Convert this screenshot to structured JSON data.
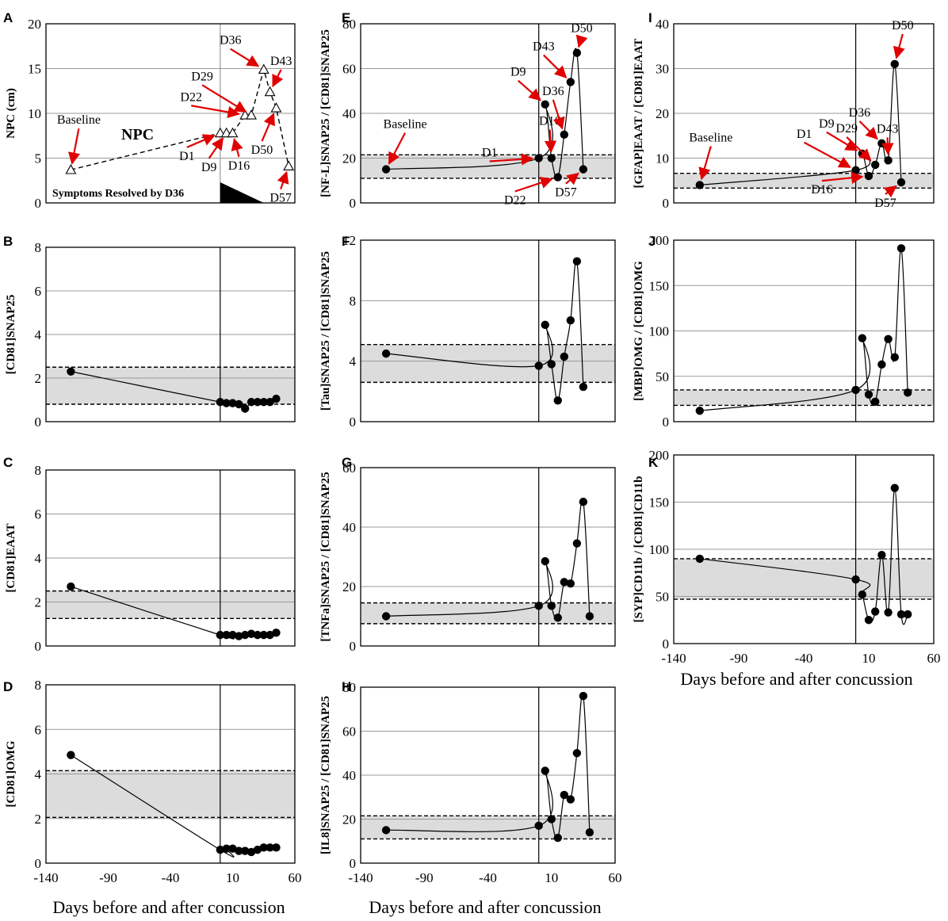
{
  "x_axis_label": "Days before and after concussion",
  "x_axis": {
    "range": [
      -140,
      60
    ],
    "ticks": [
      "-140",
      "-90",
      "-40",
      "10",
      "60"
    ]
  },
  "chart_data": [
    {
      "panel": "A",
      "type": "line",
      "ylabel": "NPC (cm)",
      "ylim": [
        0,
        20
      ],
      "yticks": [
        0,
        5,
        10,
        15,
        20
      ],
      "series_name": "NPC",
      "series_label": "NPC",
      "marker": "triangle",
      "line_style": "dashed",
      "x": [
        -120,
        0,
        5,
        10,
        20,
        25,
        35,
        40,
        45,
        55
      ],
      "y": [
        3.7,
        7.8,
        7.8,
        7.8,
        9.8,
        9.8,
        14.9,
        12.4,
        10.6,
        4.1
      ],
      "concussion_day": 0,
      "footer_text": "Symptoms Resolved by D36",
      "annotations": [
        {
          "text": "Baseline",
          "point_index": 0
        },
        {
          "text": "D1",
          "point_index": 1
        },
        {
          "text": "D9",
          "point_index": 2
        },
        {
          "text": "D16",
          "point_index": 3
        },
        {
          "text": "D22",
          "point_index": 4
        },
        {
          "text": "D29",
          "point_index": 5
        },
        {
          "text": "D36",
          "point_index": 6
        },
        {
          "text": "D43",
          "point_index": 7
        },
        {
          "text": "D50",
          "point_index": 8
        },
        {
          "text": "D57",
          "point_index": 9
        }
      ]
    },
    {
      "panel": "B",
      "type": "line",
      "ylabel": "[CD81]SNAP25",
      "ylim": [
        0,
        8
      ],
      "yticks": [
        0,
        2,
        4,
        6,
        8
      ],
      "band": [
        0.8,
        2.5
      ],
      "concussion_day": 0,
      "x": [
        -120,
        0,
        5,
        10,
        15,
        20,
        25,
        30,
        35,
        40,
        45
      ],
      "y": [
        2.3,
        0.9,
        0.85,
        0.85,
        0.8,
        0.6,
        0.9,
        0.9,
        0.9,
        0.9,
        1.05
      ]
    },
    {
      "panel": "C",
      "type": "line",
      "ylabel": "[CD81]EAAT",
      "ylim": [
        0,
        8
      ],
      "yticks": [
        0,
        2,
        4,
        6,
        8
      ],
      "band": [
        1.25,
        2.5
      ],
      "concussion_day": 0,
      "x": [
        -120,
        0,
        5,
        10,
        15,
        20,
        25,
        30,
        35,
        40,
        45
      ],
      "y": [
        2.7,
        0.5,
        0.5,
        0.5,
        0.45,
        0.5,
        0.55,
        0.5,
        0.5,
        0.5,
        0.6
      ]
    },
    {
      "panel": "D",
      "type": "line",
      "ylabel": "[CD81]OMG",
      "ylim": [
        0,
        8
      ],
      "yticks": [
        0,
        2,
        4,
        6,
        8
      ],
      "band": [
        2.05,
        4.15
      ],
      "concussion_day": 0,
      "x": [
        -120,
        0,
        5,
        10,
        15,
        20,
        25,
        30,
        35,
        40,
        45
      ],
      "y": [
        4.85,
        0.6,
        0.65,
        0.65,
        0.55,
        0.55,
        0.5,
        0.6,
        0.7,
        0.7,
        0.7
      ]
    },
    {
      "panel": "E",
      "type": "line",
      "ylabel": "[NF-L]SNAP25 / [CD81]SNAP25",
      "ylim": [
        0,
        80
      ],
      "yticks": [
        0,
        20,
        40,
        60,
        80
      ],
      "band": [
        11,
        21.5
      ],
      "concussion_day": 0,
      "x": [
        -120,
        0,
        5,
        10,
        15,
        20,
        25,
        30,
        35
      ],
      "y": [
        15,
        20,
        44,
        20,
        11.5,
        30.5,
        54,
        67,
        15
      ],
      "annotations": [
        {
          "text": "Baseline",
          "point_index": 0
        },
        {
          "text": "D1",
          "point_index": 1
        },
        {
          "text": "D9",
          "point_index": 2
        },
        {
          "text": "D16",
          "point_index": 3
        },
        {
          "text": "D22",
          "point_index": 4
        },
        {
          "text": "D36",
          "point_index": 5
        },
        {
          "text": "D43",
          "point_index": 6
        },
        {
          "text": "D50",
          "point_index": 7
        },
        {
          "text": "D57",
          "point_index": 8
        }
      ]
    },
    {
      "panel": "F",
      "type": "line",
      "ylabel": "[Tau]SNAP25 / [CD81]SNAP25",
      "ylim": [
        0,
        12
      ],
      "yticks": [
        0,
        4,
        8,
        12
      ],
      "band": [
        2.6,
        5.1
      ],
      "concussion_day": 0,
      "x": [
        -120,
        0,
        5,
        10,
        15,
        20,
        25,
        30,
        35
      ],
      "y": [
        4.5,
        3.7,
        6.4,
        3.8,
        1.4,
        4.3,
        6.7,
        10.6,
        2.3
      ]
    },
    {
      "panel": "G",
      "type": "line",
      "ylabel": "[TNFa]SNAP25 / [CD81]SNAP25",
      "ylim": [
        0,
        60
      ],
      "yticks": [
        0,
        20,
        40,
        60
      ],
      "band": [
        7.5,
        14.5
      ],
      "concussion_day": 0,
      "x": [
        -120,
        0,
        5,
        10,
        15,
        20,
        25,
        30,
        35,
        40
      ],
      "y": [
        10,
        13.5,
        28.5,
        13.5,
        9.5,
        21.5,
        21,
        34.5,
        48.5,
        10
      ]
    },
    {
      "panel": "H",
      "type": "line",
      "ylabel": "[IL8]SNAP25 / [CD81]SNAP25",
      "ylim": [
        0,
        80
      ],
      "yticks": [
        0,
        20,
        40,
        60,
        80
      ],
      "band": [
        11,
        21.5
      ],
      "concussion_day": 0,
      "x": [
        -120,
        0,
        5,
        10,
        15,
        20,
        25,
        30,
        35,
        40
      ],
      "y": [
        15,
        17,
        42,
        20,
        11.5,
        31,
        29,
        50,
        76,
        14
      ]
    },
    {
      "panel": "I",
      "type": "line",
      "ylabel": "[GFAP]EAAT / [CD81]EAAT",
      "ylim": [
        0,
        40
      ],
      "yticks": [
        0,
        10,
        20,
        30,
        40
      ],
      "band": [
        3.3,
        6.6
      ],
      "concussion_day": 0,
      "x": [
        -120,
        0,
        5,
        10,
        15,
        20,
        25,
        30,
        35
      ],
      "y": [
        4,
        7.3,
        11,
        6,
        8.5,
        13.3,
        9.5,
        31,
        4.6
      ],
      "annotations": [
        {
          "text": "Baseline",
          "point_index": 0
        },
        {
          "text": "D1",
          "point_index": 1
        },
        {
          "text": "D9",
          "point_index": 2
        },
        {
          "text": "D16",
          "point_index": 3
        },
        {
          "text": "D29",
          "point_index": 4
        },
        {
          "text": "D36",
          "point_index": 5
        },
        {
          "text": "D43",
          "point_index": 6
        },
        {
          "text": "D50",
          "point_index": 7
        },
        {
          "text": "D57",
          "point_index": 8
        }
      ]
    },
    {
      "panel": "J",
      "type": "line",
      "ylabel": "[MBP]OMG / [CD81]OMG",
      "ylim": [
        0,
        200
      ],
      "yticks": [
        0,
        50,
        100,
        150,
        200
      ],
      "band": [
        18,
        35
      ],
      "concussion_day": 0,
      "x": [
        -120,
        0,
        5,
        10,
        15,
        20,
        25,
        30,
        35,
        40
      ],
      "y": [
        12,
        35,
        92,
        30,
        22,
        63,
        91,
        71,
        191,
        32
      ]
    },
    {
      "panel": "K",
      "type": "line",
      "ylabel": "[SYP]CD11b / [CD81]CD11b",
      "ylim": [
        0,
        200
      ],
      "yticks": [
        0,
        50,
        100,
        150,
        200
      ],
      "band": [
        47,
        90
      ],
      "concussion_day": 0,
      "x": [
        -120,
        0,
        5,
        10,
        15,
        20,
        25,
        30,
        35,
        40
      ],
      "y": [
        90,
        68,
        52,
        25,
        34,
        94,
        33,
        165,
        31,
        31
      ]
    }
  ]
}
